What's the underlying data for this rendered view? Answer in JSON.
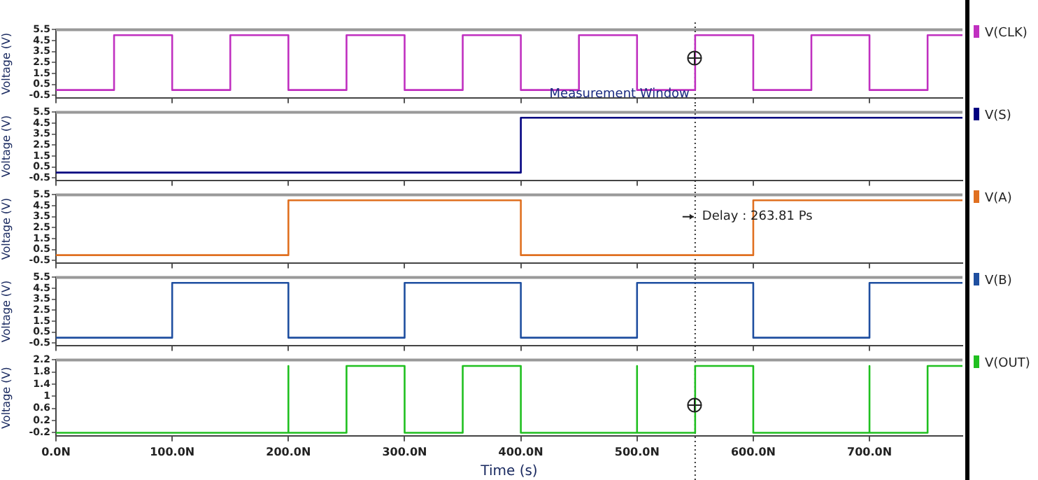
{
  "chart_data": [
    {
      "type": "line",
      "ylabel": "Voltage (V)",
      "legend": "right",
      "marker": "none",
      "grid": false,
      "tick_labels": "y",
      "xlim": [
        0,
        780
      ],
      "xticks": [
        {
          "value": 0,
          "label": null
        },
        {
          "value": 100,
          "label": null
        },
        {
          "value": 200,
          "label": null
        },
        {
          "value": 300,
          "label": null
        },
        {
          "value": 400,
          "label": null
        },
        {
          "value": 500,
          "label": null
        },
        {
          "value": 600,
          "label": null
        },
        {
          "value": 700,
          "label": null
        }
      ],
      "ylim": [
        -0.7,
        5.5
      ],
      "yticks": [
        5.5,
        4.5,
        3.5,
        2.5,
        1.5,
        0.5,
        -0.5
      ],
      "series": [
        {
          "name": "V(CLK)",
          "color": "#c030c0",
          "x": [
            0,
            50,
            50,
            100,
            100,
            150,
            150,
            200,
            200,
            250,
            250,
            300,
            300,
            350,
            350,
            400,
            400,
            450,
            450,
            500,
            500,
            550,
            550,
            600,
            600,
            650,
            650,
            700,
            700,
            750,
            750,
            780
          ],
          "values": [
            0,
            0,
            5,
            5,
            0,
            0,
            5,
            5,
            0,
            0,
            5,
            5,
            0,
            0,
            5,
            5,
            0,
            0,
            5,
            5,
            0,
            0,
            5,
            5,
            0,
            0,
            5,
            5,
            0,
            0,
            5,
            5
          ]
        }
      ],
      "ref_lines": [
        {
          "axis": "x",
          "value": 550,
          "line_style": "dotted",
          "color": "#333333"
        }
      ],
      "annotations": [
        {
          "text": "Measurement Window",
          "x": 550,
          "y": -0.35
        }
      ]
    },
    {
      "type": "line",
      "ylabel": "Voltage (V)",
      "legend": "right",
      "marker": "none",
      "grid": false,
      "tick_labels": "y",
      "xlim": [
        0,
        780
      ],
      "xticks": [
        {
          "value": 0,
          "label": null
        },
        {
          "value": 100,
          "label": null
        },
        {
          "value": 200,
          "label": null
        },
        {
          "value": 300,
          "label": null
        },
        {
          "value": 400,
          "label": null
        },
        {
          "value": 500,
          "label": null
        },
        {
          "value": 600,
          "label": null
        },
        {
          "value": 700,
          "label": null
        }
      ],
      "ylim": [
        -0.7,
        5.5
      ],
      "yticks": [
        5.5,
        4.5,
        3.5,
        2.5,
        1.5,
        0.5,
        -0.5
      ],
      "series": [
        {
          "name": "V(S)",
          "color": "#000080",
          "x": [
            0,
            400,
            400,
            780
          ],
          "values": [
            0,
            0,
            5,
            5
          ]
        }
      ],
      "ref_lines": [
        {
          "axis": "x",
          "value": 550,
          "line_style": "dotted",
          "color": "#333333"
        }
      ]
    },
    {
      "type": "line",
      "ylabel": "Voltage (V)",
      "legend": "right",
      "marker": "none",
      "grid": false,
      "tick_labels": "y",
      "xlim": [
        0,
        780
      ],
      "xticks": [
        {
          "value": 0,
          "label": null
        },
        {
          "value": 100,
          "label": null
        },
        {
          "value": 200,
          "label": null
        },
        {
          "value": 300,
          "label": null
        },
        {
          "value": 400,
          "label": null
        },
        {
          "value": 500,
          "label": null
        },
        {
          "value": 600,
          "label": null
        },
        {
          "value": 700,
          "label": null
        }
      ],
      "ylim": [
        -0.7,
        5.5
      ],
      "yticks": [
        5.5,
        4.5,
        3.5,
        2.5,
        1.5,
        0.5,
        -0.5
      ],
      "series": [
        {
          "name": "V(A)",
          "color": "#e07020",
          "x": [
            0,
            200,
            200,
            400,
            400,
            600,
            600,
            780
          ],
          "values": [
            0,
            0,
            5,
            5,
            0,
            0,
            5,
            5
          ]
        }
      ],
      "ref_lines": [
        {
          "axis": "x",
          "value": 550,
          "line_style": "dotted",
          "color": "#333333"
        }
      ],
      "annotations": [
        {
          "text": "Delay : 263.81 Ps",
          "x": 550,
          "y": 3.5
        }
      ]
    },
    {
      "type": "line",
      "ylabel": "Voltage (V)",
      "legend": "right",
      "marker": "none",
      "grid": false,
      "tick_labels": "y",
      "xlim": [
        0,
        780
      ],
      "xticks": [
        {
          "value": 0,
          "label": null
        },
        {
          "value": 100,
          "label": null
        },
        {
          "value": 200,
          "label": null
        },
        {
          "value": 300,
          "label": null
        },
        {
          "value": 400,
          "label": null
        },
        {
          "value": 500,
          "label": null
        },
        {
          "value": 600,
          "label": null
        },
        {
          "value": 700,
          "label": null
        }
      ],
      "ylim": [
        -0.7,
        5.5
      ],
      "yticks": [
        5.5,
        4.5,
        3.5,
        2.5,
        1.5,
        0.5,
        -0.5
      ],
      "series": [
        {
          "name": "V(B)",
          "color": "#1f4fa0",
          "x": [
            0,
            100,
            100,
            200,
            200,
            300,
            300,
            400,
            400,
            500,
            500,
            600,
            600,
            700,
            700,
            780
          ],
          "values": [
            0,
            0,
            5,
            5,
            0,
            0,
            5,
            5,
            0,
            0,
            5,
            5,
            0,
            0,
            5,
            5
          ]
        }
      ],
      "ref_lines": [
        {
          "axis": "x",
          "value": 550,
          "line_style": "dotted",
          "color": "#333333"
        }
      ]
    },
    {
      "type": "line",
      "ylabel": "Voltage (V)",
      "xlabel": "Time (s)",
      "legend": "right",
      "marker": "none",
      "grid": false,
      "xlim": [
        0,
        780
      ],
      "xticks": [
        {
          "value": 0,
          "label": "0.0N"
        },
        {
          "value": 100,
          "label": "100.0N"
        },
        {
          "value": 200,
          "label": "200.0N"
        },
        {
          "value": 300,
          "label": "300.0N"
        },
        {
          "value": 400,
          "label": "400.0N"
        },
        {
          "value": 500,
          "label": "500.0N"
        },
        {
          "value": 600,
          "label": "600.0N"
        },
        {
          "value": 700,
          "label": "700.0N"
        }
      ],
      "ylim": [
        -0.3,
        2.2
      ],
      "yticks": [
        2.2,
        1.8,
        1.4,
        1.0,
        0.6,
        0.2,
        -0.2
      ],
      "series": [
        {
          "name": "V(OUT)",
          "color": "#20c020",
          "x": [
            0,
            200,
            200,
            200,
            250,
            250,
            300,
            300,
            350,
            350,
            400,
            400,
            500,
            500,
            500,
            550,
            550,
            600,
            600,
            700,
            700,
            700,
            750,
            750,
            780
          ],
          "values": [
            -0.2,
            -0.2,
            2,
            -0.2,
            -0.2,
            2,
            2,
            -0.2,
            -0.2,
            2,
            2,
            -0.2,
            -0.2,
            2,
            -0.2,
            -0.2,
            2,
            2,
            -0.2,
            -0.2,
            2,
            -0.2,
            -0.2,
            2,
            2
          ]
        }
      ],
      "ref_lines": [
        {
          "axis": "x",
          "value": 550,
          "line_style": "dotted",
          "color": "#333333"
        }
      ]
    }
  ]
}
